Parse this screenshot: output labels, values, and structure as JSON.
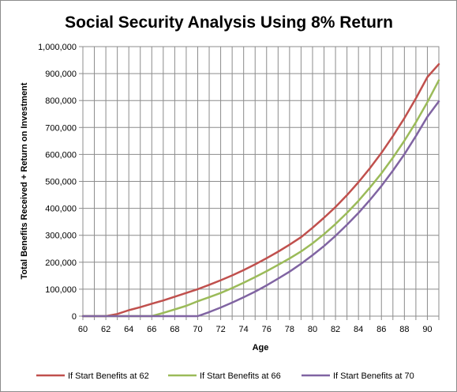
{
  "chart_data": {
    "type": "line",
    "title": "Social Security Analysis Using 8% Return",
    "xlabel": "Age",
    "ylabel": "Total Benefits Received + Return on Investment",
    "xlim": [
      60,
      91
    ],
    "ylim": [
      0,
      1000000
    ],
    "x_ticks": [
      60,
      62,
      64,
      66,
      68,
      70,
      72,
      74,
      76,
      78,
      80,
      82,
      84,
      86,
      88,
      90
    ],
    "y_ticks": [
      "0",
      "100,000",
      "200,000",
      "300,000",
      "400,000",
      "500,000",
      "600,000",
      "700,000",
      "800,000",
      "900,000",
      "1,000,000"
    ],
    "grid": true,
    "legend_position": "bottom",
    "x": [
      60,
      61,
      62,
      63,
      64,
      65,
      66,
      67,
      68,
      69,
      70,
      71,
      72,
      73,
      74,
      75,
      76,
      77,
      78,
      79,
      80,
      81,
      82,
      83,
      84,
      85,
      86,
      87,
      88,
      89,
      90,
      91
    ],
    "series": [
      {
        "name": "If Start Benefits at 62",
        "color": "#c0504d",
        "values": [
          0,
          0,
          0,
          8000,
          22000,
          33000,
          46000,
          58000,
          72000,
          86000,
          100000,
          116000,
          133000,
          151000,
          171000,
          192000,
          215000,
          239000,
          265000,
          293000,
          328000,
          365000,
          405000,
          449000,
          497000,
          549000,
          606000,
          668000,
          735000,
          808000,
          887000,
          935000
        ]
      },
      {
        "name": "If Start Benefits at 66",
        "color": "#9bbb59",
        "values": [
          0,
          0,
          0,
          0,
          0,
          0,
          0,
          12000,
          25000,
          38000,
          55000,
          70000,
          86000,
          104000,
          124000,
          145000,
          167000,
          190000,
          214000,
          240000,
          270000,
          304000,
          342000,
          383000,
          428000,
          477000,
          530000,
          588000,
          651000,
          719000,
          794000,
          875000
        ]
      },
      {
        "name": "If Start Benefits at 70",
        "color": "#8064a2",
        "values": [
          0,
          0,
          0,
          0,
          0,
          0,
          0,
          0,
          0,
          0,
          0,
          15000,
          32000,
          50000,
          70000,
          91000,
          114000,
          139000,
          165000,
          194000,
          226000,
          260000,
          298000,
          339000,
          383000,
          431000,
          483000,
          540000,
          601000,
          668000,
          740000,
          797000
        ]
      }
    ]
  }
}
